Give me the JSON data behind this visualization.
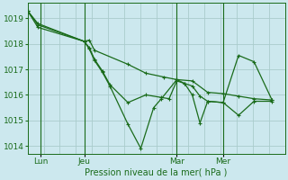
{
  "background_color": "#cce8ee",
  "grid_color": "#aacccc",
  "line_color": "#1a6b1a",
  "title": "Pression niveau de la mer( hPa )",
  "ylabel_ticks": [
    1014,
    1015,
    1016,
    1017,
    1018,
    1019
  ],
  "ylim": [
    1013.7,
    1019.6
  ],
  "day_labels": [
    "Lun",
    "Jeu",
    "Mar",
    "Mer"
  ],
  "day_positions": [
    0.05,
    0.22,
    0.58,
    0.76
  ],
  "xlim": [
    0,
    1
  ],
  "series1_x": [
    0.0,
    0.04,
    0.22,
    0.24,
    0.26,
    0.39,
    0.46,
    0.53,
    0.58,
    0.64,
    0.7,
    0.76,
    0.82,
    0.88,
    0.95
  ],
  "series1_y": [
    1019.3,
    1018.8,
    1018.1,
    1018.15,
    1017.75,
    1017.2,
    1016.85,
    1016.7,
    1016.6,
    1016.55,
    1016.1,
    1016.05,
    1015.95,
    1015.85,
    1015.8
  ],
  "series2_x": [
    0.0,
    0.04,
    0.22,
    0.24,
    0.26,
    0.29,
    0.32,
    0.39,
    0.46,
    0.52,
    0.55,
    0.58,
    0.61,
    0.64,
    0.67,
    0.7,
    0.76,
    0.82,
    0.88,
    0.95
  ],
  "series2_y": [
    1019.3,
    1018.75,
    1018.1,
    1017.85,
    1017.4,
    1016.95,
    1016.4,
    1015.7,
    1016.0,
    1015.9,
    1015.85,
    1016.55,
    1016.45,
    1016.35,
    1015.95,
    1015.75,
    1015.7,
    1015.2,
    1015.75,
    1015.75
  ],
  "series3_x": [
    0.0,
    0.04,
    0.22,
    0.24,
    0.26,
    0.29,
    0.32,
    0.39,
    0.44,
    0.49,
    0.52,
    0.58,
    0.61,
    0.64,
    0.67,
    0.7,
    0.76,
    0.82,
    0.88,
    0.95
  ],
  "series3_y": [
    1019.3,
    1018.65,
    1018.1,
    1017.8,
    1017.35,
    1016.9,
    1016.35,
    1014.85,
    1013.9,
    1015.5,
    1015.85,
    1016.6,
    1016.45,
    1016.0,
    1014.9,
    1015.75,
    1015.7,
    1017.55,
    1017.3,
    1015.8
  ],
  "num_vert_grid": 16,
  "marker_size": 2.5,
  "line_width": 0.9,
  "title_fontsize": 7,
  "tick_fontsize": 6.5
}
